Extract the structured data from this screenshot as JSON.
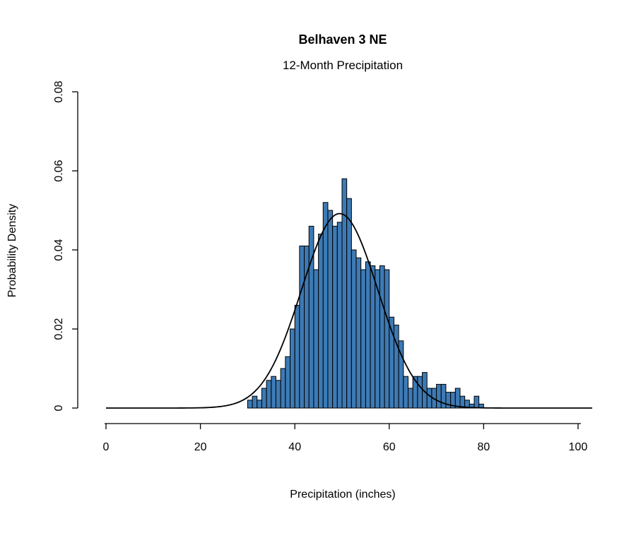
{
  "page": {
    "background_color": "#ffffff"
  },
  "chart_data": {
    "type": "bar",
    "subtype": "histogram-with-normal-curve",
    "title": "Belhaven 3 NE",
    "subtitle": "12-Month Precipitation",
    "xlabel": "Precipitation (inches)",
    "ylabel": "Probability Density",
    "xlim": [
      0,
      100
    ],
    "ylim": [
      0,
      0.08
    ],
    "x_ticks": [
      0,
      20,
      40,
      60,
      80,
      100
    ],
    "x_tick_labels": [
      "0",
      "20",
      "40",
      "60",
      "80",
      "100"
    ],
    "y_ticks": [
      0,
      0.02,
      0.04,
      0.06,
      0.08
    ],
    "y_tick_labels": [
      "0",
      "0.02",
      "0.04",
      "0.06",
      "0.08"
    ],
    "grid": false,
    "legend": false,
    "bar_color": "#3d7ab5",
    "bar_edge_color": "#000000",
    "bins": {
      "start": 30,
      "width": 1,
      "densities": [
        0.002,
        0.003,
        0.002,
        0.005,
        0.007,
        0.008,
        0.007,
        0.01,
        0.013,
        0.02,
        0.026,
        0.041,
        0.041,
        0.046,
        0.035,
        0.044,
        0.052,
        0.05,
        0.046,
        0.047,
        0.058,
        0.053,
        0.04,
        0.038,
        0.035,
        0.037,
        0.036,
        0.035,
        0.036,
        0.035,
        0.023,
        0.021,
        0.017,
        0.008,
        0.005,
        0.008,
        0.008,
        0.009,
        0.005,
        0.005,
        0.006,
        0.006,
        0.004,
        0.004,
        0.005,
        0.003,
        0.002,
        0.001,
        0.003,
        0.001
      ]
    },
    "normal_curve": {
      "mean": 49.5,
      "sd": 8.1,
      "peak_density": 0.0492,
      "color": "#000000",
      "x_range": [
        0,
        103
      ]
    }
  }
}
